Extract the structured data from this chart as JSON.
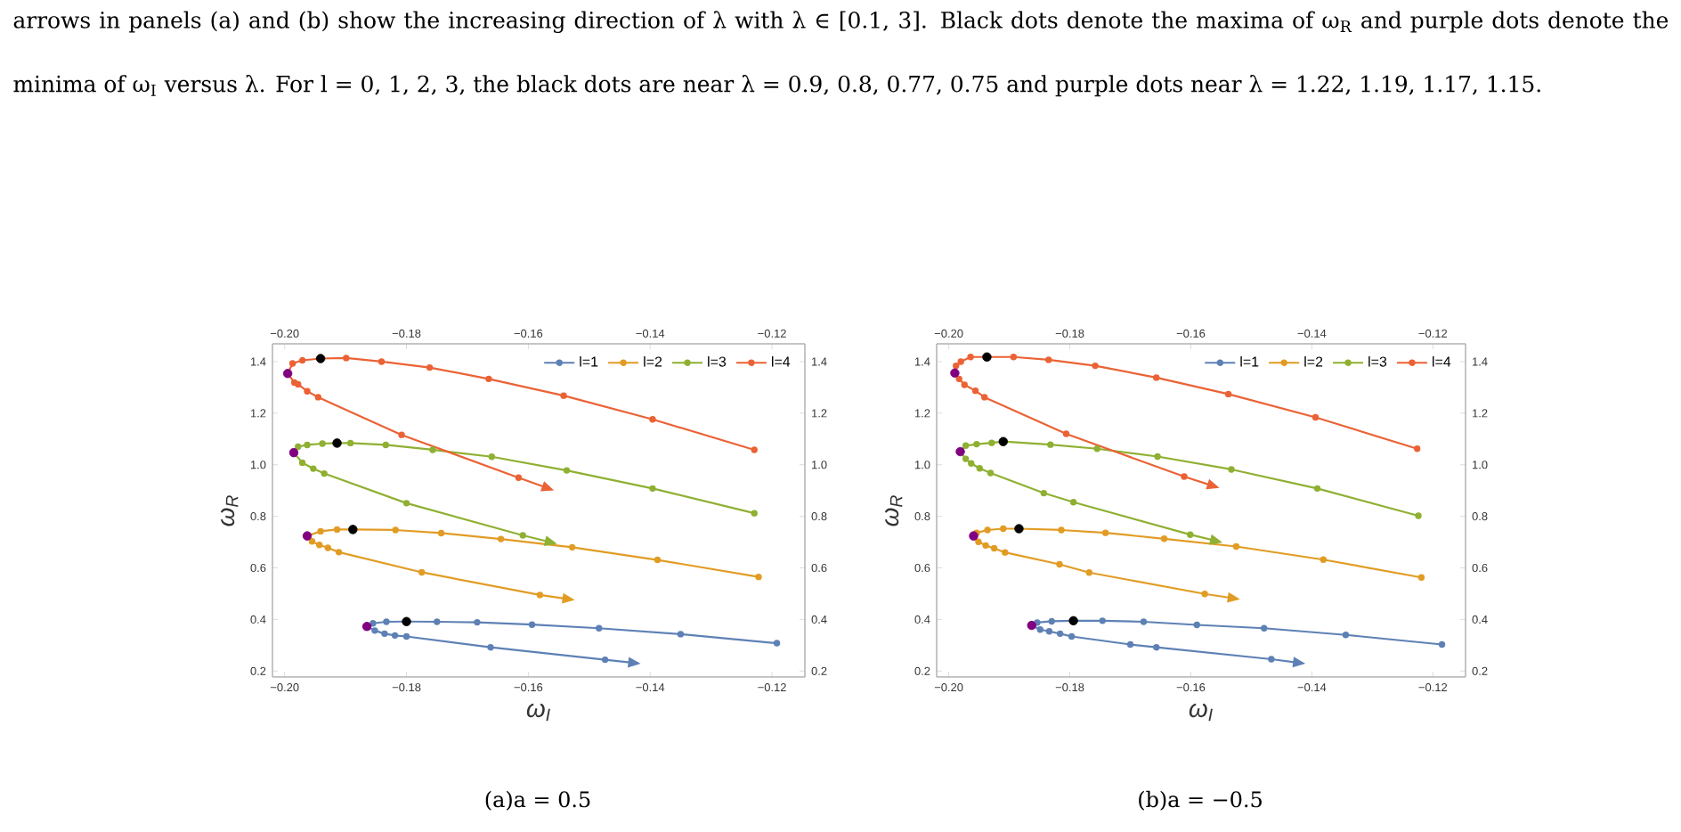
{
  "chart_data": [
    {
      "type": "line",
      "xlabel": "ω$_{I}$",
      "ylabel": "ω$_{R}$",
      "legend": "top right",
      "marker": "circle",
      "line_style": "solid",
      "xlim": [
        -0.202,
        -0.1146
      ],
      "ylim": [
        0.177,
        1.469
      ],
      "x2lim": [
        -0.202,
        -0.1146
      ],
      "y2lim": [
        0.177,
        1.469
      ],
      "xticks": [
        {
          "value": -0.2,
          "label": "−0.20"
        },
        {
          "value": -0.18,
          "label": "−0.18"
        },
        {
          "value": -0.16,
          "label": "−0.16"
        },
        {
          "value": -0.14,
          "label": "−0.14"
        },
        {
          "value": -0.12,
          "label": "−0.12"
        }
      ],
      "x2ticks": [
        {
          "value": -0.2,
          "label": "−0.20"
        },
        {
          "value": -0.18,
          "label": "−0.18"
        },
        {
          "value": -0.16,
          "label": "−0.16"
        },
        {
          "value": -0.14,
          "label": "−0.14"
        },
        {
          "value": -0.12,
          "label": "−0.12"
        }
      ],
      "yticks": [
        0.2,
        0.4,
        0.6,
        0.8,
        {
          "value": 1,
          "label": "1.0"
        },
        1.2,
        1.4
      ],
      "y2ticks": [
        0.2,
        0.4,
        0.6,
        0.8,
        {
          "value": 1,
          "label": "1.0"
        },
        1.2,
        1.4
      ],
      "annotations": [
        "arrows in panels (a) and (b) show the increasing direction of λ with λ ∈ [0.1, 3]. Black dots denote the maxima of ω$_{R}$ and purple dots denote the minima of ω$_{I}$ versus λ. For l = 0, 1, 2, 3, the black dots are near λ = 0.9, 0.8, 0.77, 0.75 and purple dots near λ = 1.22, 1.19, 1.17, 1.15.",
        "(a)a = 0.5"
      ],
      "series": [
        {
          "name": "l=1",
          "color": "#5e81b5",
          "x": [
            -0.1192,
            -0.135,
            -0.1484,
            -0.1594,
            -0.1684,
            -0.175,
            -0.18,
            -0.1833,
            -0.1855,
            -0.1865,
            -0.1852,
            -0.1836,
            -0.1819,
            -0.18,
            -0.1662,
            -0.1474,
            -0.142
          ],
          "values": [
            0.308,
            0.343,
            0.366,
            0.38,
            0.389,
            0.391,
            0.392,
            0.391,
            0.385,
            0.373,
            0.357,
            0.345,
            0.338,
            0.334,
            0.292,
            0.244,
            0.23
          ]
        },
        {
          "name": "l=2",
          "color": "#e19c24",
          "x": [
            -0.1222,
            -0.1388,
            -0.1528,
            -0.1645,
            -0.1743,
            -0.1818,
            -0.1888,
            -0.1914,
            -0.1941,
            -0.1958,
            -0.1963,
            -0.1955,
            -0.1943,
            -0.1929,
            -0.1911,
            -0.1775,
            -0.1581,
            -0.1528
          ],
          "values": [
            0.565,
            0.631,
            0.68,
            0.712,
            0.735,
            0.747,
            0.749,
            0.749,
            0.742,
            null,
            0.724,
            0.703,
            0.689,
            0.678,
            0.661,
            0.583,
            0.495,
            0.477
          ]
        },
        {
          "name": "l=3",
          "color": "#8fb032",
          "x": [
            -0.1229,
            -0.1396,
            -0.1537,
            -0.166,
            -0.1757,
            -0.1834,
            -0.1892,
            -0.1914,
            -0.1938,
            -0.1963,
            -0.1978,
            -0.1985,
            -0.1971,
            -0.1953,
            -0.1935,
            -0.18,
            -0.1609,
            -0.1557
          ],
          "values": [
            0.812,
            0.908,
            0.978,
            1.031,
            1.058,
            1.077,
            1.084,
            1.084,
            1.082,
            1.077,
            1.07,
            1.047,
            1.008,
            0.985,
            0.966,
            0.851,
            0.726,
            0.696
          ]
        },
        {
          "name": "l=4",
          "color": "#eb6235",
          "x": [
            -0.1229,
            -0.1396,
            -0.1542,
            -0.1665,
            -0.1762,
            -0.1841,
            -0.1899,
            -0.1941,
            -0.1971,
            -0.1987,
            -0.1995,
            -0.1984,
            -0.1978,
            -0.1963,
            -0.1945,
            -0.1808,
            -0.1616,
            -0.1562
          ],
          "values": [
            1.058,
            1.176,
            1.268,
            1.333,
            1.377,
            1.4,
            1.414,
            1.412,
            1.405,
            1.393,
            1.354,
            1.319,
            1.312,
            1.285,
            1.262,
            1.116,
            0.95,
            0.904
          ]
        },
        {
          "type": "scatter",
          "color": "#000000",
          "x": [
            -0.18,
            -0.1888,
            -0.1914,
            -0.1941
          ],
          "values": [
            0.392,
            0.749,
            1.084,
            1.412
          ]
        },
        {
          "type": "scatter",
          "color": "#800080",
          "x": [
            -0.1865,
            -0.1963,
            -0.1985,
            -0.1995
          ],
          "values": [
            0.373,
            0.724,
            1.047,
            1.354
          ]
        }
      ]
    },
    {
      "type": "line",
      "xlabel": "ω$_{I}$",
      "ylabel": "ω$_{R}$",
      "legend": "top right",
      "marker": "circle",
      "line_style": "solid",
      "xlim": [
        -0.202,
        -0.1146
      ],
      "ylim": [
        0.177,
        1.469
      ],
      "x2lim": [
        -0.202,
        -0.1146
      ],
      "y2lim": [
        0.177,
        1.469
      ],
      "xticks": [
        {
          "value": -0.2,
          "label": "−0.20"
        },
        {
          "value": -0.18,
          "label": "−0.18"
        },
        {
          "value": -0.16,
          "label": "−0.16"
        },
        {
          "value": -0.14,
          "label": "−0.14"
        },
        {
          "value": -0.12,
          "label": "−0.12"
        }
      ],
      "x2ticks": [
        {
          "value": -0.2,
          "label": "−0.20"
        },
        {
          "value": -0.18,
          "label": "−0.18"
        },
        {
          "value": -0.16,
          "label": "−0.16"
        },
        {
          "value": -0.14,
          "label": "−0.14"
        },
        {
          "value": -0.12,
          "label": "−0.12"
        }
      ],
      "yticks": [
        0.2,
        0.4,
        0.6,
        0.8,
        {
          "value": 1,
          "label": "1.0"
        },
        1.2,
        1.4
      ],
      "y2ticks": [
        0.2,
        0.4,
        0.6,
        0.8,
        {
          "value": 1,
          "label": "1.0"
        },
        1.2,
        1.4
      ],
      "annotations": [
        "(b)a = −0.5"
      ],
      "series": [
        {
          "name": "l=1",
          "color": "#5e81b5",
          "x": [
            -0.1185,
            -0.1344,
            -0.1479,
            -0.159,
            -0.1678,
            -0.1746,
            -0.1794,
            -0.183,
            -0.1854,
            -0.1863,
            -0.1849,
            -0.1834,
            -0.1816,
            -0.1797,
            -0.17,
            -0.1657,
            -0.1467,
            -0.1415
          ],
          "values": [
            0.303,
            0.34,
            0.366,
            0.379,
            0.391,
            0.395,
            0.395,
            0.393,
            0.388,
            0.377,
            0.361,
            0.354,
            0.345,
            0.334,
            0.303,
            0.292,
            0.246,
            0.23
          ]
        },
        {
          "name": "l=2",
          "color": "#e19c24",
          "x": [
            -0.1219,
            -0.1381,
            -0.1525,
            -0.1644,
            -0.1741,
            -0.1814,
            -0.1884,
            -0.191,
            -0.1936,
            -0.1954,
            -0.1959,
            -0.1951,
            -0.1939,
            -0.1925,
            -0.1907,
            -0.1817,
            -0.1768,
            -0.1577,
            -0.1523
          ],
          "values": [
            0.563,
            0.632,
            0.683,
            0.713,
            0.736,
            0.747,
            0.752,
            0.752,
            0.747,
            0.736,
            0.724,
            0.701,
            0.687,
            0.676,
            0.66,
            0.614,
            0.582,
            0.499,
            0.48
          ]
        },
        {
          "name": "l=3",
          "color": "#8fb032",
          "x": [
            -0.1224,
            -0.1391,
            -0.1533,
            -0.1655,
            -0.1755,
            -0.1832,
            -0.191,
            -0.1929,
            -0.1954,
            -0.1972,
            -0.1981,
            -0.1972,
            -0.1963,
            -0.1949,
            -0.1931,
            -0.1843,
            -0.1794,
            -0.1601,
            -0.1552
          ],
          "values": [
            0.802,
            0.908,
            0.982,
            1.032,
            1.062,
            1.078,
            1.09,
            1.085,
            1.08,
            1.074,
            1.051,
            1.023,
            1.005,
            0.986,
            0.968,
            0.89,
            0.855,
            0.729,
            0.701
          ]
        },
        {
          "name": "l=4",
          "color": "#eb6235",
          "x": [
            -0.1226,
            -0.1394,
            -0.1538,
            -0.1657,
            -0.1758,
            -0.1835,
            -0.1893,
            -0.1937,
            -0.1964,
            -0.198,
            -0.1988,
            -0.199,
            -0.1983,
            -0.1974,
            -0.1956,
            -0.1941,
            -0.1806,
            -0.1611,
            -0.1557
          ],
          "values": [
            1.062,
            1.184,
            1.274,
            1.338,
            1.384,
            1.407,
            1.418,
            1.418,
            1.418,
            1.4,
            1.384,
            1.356,
            1.333,
            1.31,
            1.287,
            1.262,
            1.12,
            0.954,
            0.913
          ]
        },
        {
          "type": "scatter",
          "color": "#000000",
          "x": [
            -0.1794,
            -0.1884,
            -0.191,
            -0.1937
          ],
          "values": [
            0.395,
            0.752,
            1.09,
            1.418
          ]
        },
        {
          "type": "scatter",
          "color": "#800080",
          "x": [
            -0.1863,
            -0.1959,
            -0.1981,
            -0.199
          ],
          "values": [
            0.377,
            0.724,
            1.051,
            1.356
          ]
        }
      ]
    }
  ]
}
